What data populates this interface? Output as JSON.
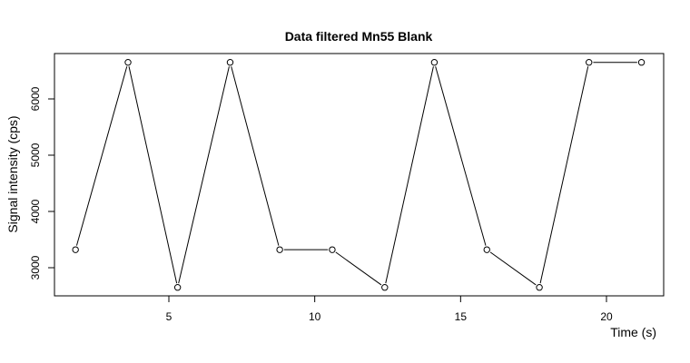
{
  "chart_data": {
    "type": "line",
    "title": "Data filtered Mn55 Blank",
    "xlabel": "Time (s)",
    "ylabel": "Signal intensity (cps)",
    "xlim": [
      1.5,
      22
    ],
    "ylim": [
      2500,
      6800
    ],
    "x_ticks": [
      5,
      10,
      15,
      20
    ],
    "y_ticks": [
      3000,
      4000,
      5000,
      6000
    ],
    "grid": false,
    "marker": "open-circle",
    "line_color": "#000000",
    "series": [
      {
        "x": [
          1.8,
          3.6,
          5.3,
          7.1,
          8.8,
          10.6,
          12.4,
          14.1,
          15.9,
          17.7,
          19.4,
          21.2
        ],
        "y": [
          3320,
          6650,
          2650,
          6650,
          3320,
          3320,
          2650,
          6650,
          3320,
          2650,
          6650,
          6650
        ]
      }
    ]
  }
}
